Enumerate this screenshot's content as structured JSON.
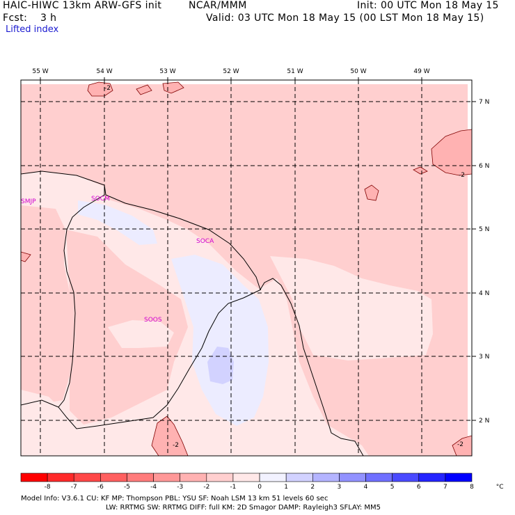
{
  "header": {
    "title_left": "HAIC-HIWC 13km ARW-GFS init",
    "title_center": "NCAR/MMM",
    "init": "Init: 00 UTC Mon 18 May 15",
    "fcst_label": "Fcst:",
    "fcst_value": "3 h",
    "valid": "Valid: 03 UTC Mon 18 May 15 (00 LST Mon 18 May 15)",
    "field": "Lifted index"
  },
  "map": {
    "longitude_labels": [
      "55 W",
      "54 W",
      "53 W",
      "52 W",
      "51 W",
      "50 W",
      "49 W"
    ],
    "latitude_labels": [
      "7 N",
      "6 N",
      "5 N",
      "4 N",
      "3 N",
      "2 N"
    ],
    "stations": [
      "SMJP",
      "SOCM",
      "SOCA",
      "SOOS"
    ],
    "contour_labels": [
      "-2",
      "-2",
      "-2",
      "-2"
    ]
  },
  "colorbar": {
    "tick_labels": [
      "-8",
      "-7",
      "-6",
      "-5",
      "-4",
      "-3",
      "-2",
      "-1",
      "0",
      "1",
      "2",
      "3",
      "4",
      "5",
      "6",
      "7",
      "8",
      "°C"
    ],
    "colors": [
      "#ff0000",
      "#ff2a2a",
      "#ff4848",
      "#ff6060",
      "#ff7c7c",
      "#ff9898",
      "#ffb2b2",
      "#ffcfcf",
      "#ffe8e8",
      "#f2f2ff",
      "#d2d2ff",
      "#b4b4ff",
      "#9292ff",
      "#7070ff",
      "#4a4aff",
      "#2424ff",
      "#0000ff"
    ]
  },
  "footer": {
    "line1": "Model Info: V3.6.1   CU: KF    MP: Thompson   PBL: YSU     SF: Noah LSM    13 km   51 levels   60 sec",
    "line2": "LW: RRTMG   SW: RRTMG   DIFF: full    KM: 2D Smagor DAMP: Rayleigh3   SFLAY: MM5"
  }
}
